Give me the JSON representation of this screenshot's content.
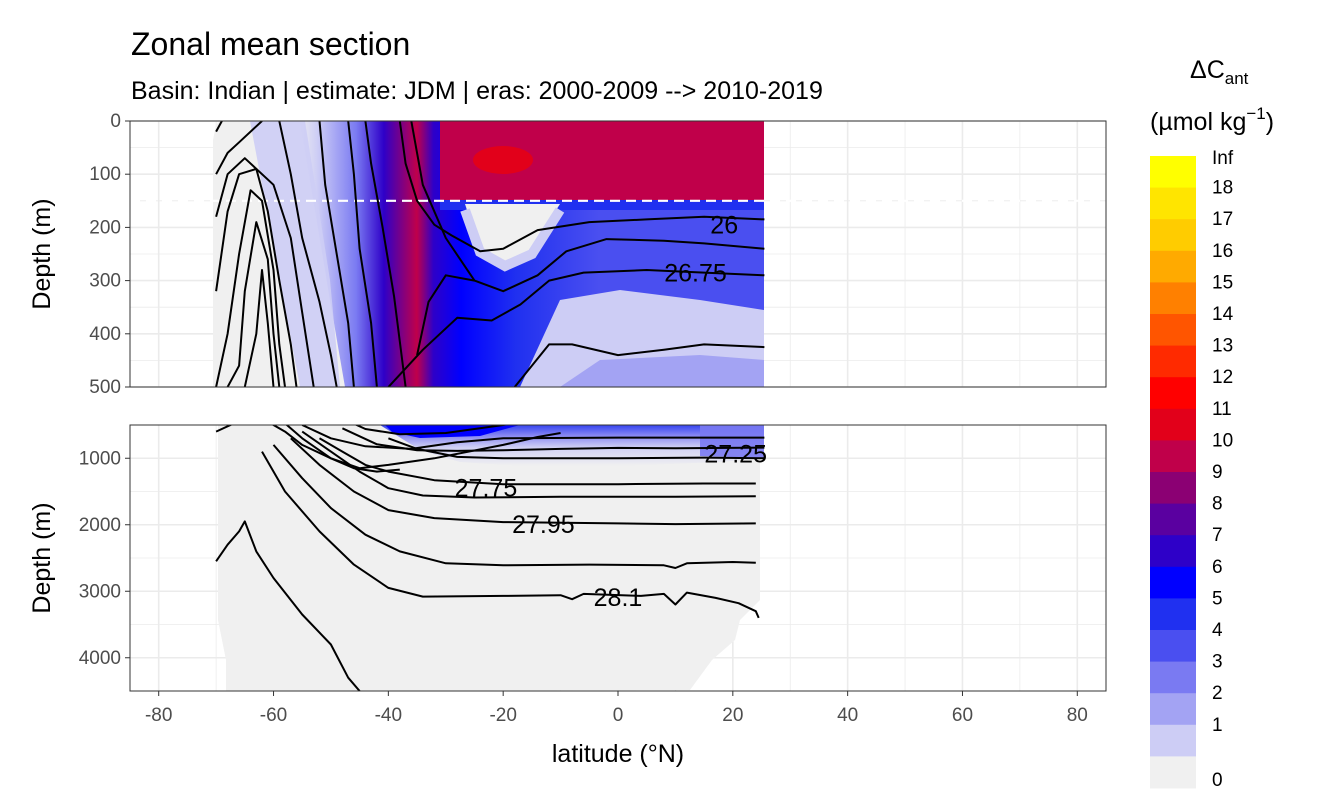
{
  "chart_data": {
    "type": "heatmap",
    "title": "Zonal mean section",
    "subtitle": "Basin: Indian | estimate: JDM  | eras: 2000-2009 --> 2010-2019",
    "xlabel": "latitude (°N)",
    "ylabel": "Depth (m)",
    "xlim": [
      -85,
      85
    ],
    "x_ticks": [
      -80,
      -60,
      -40,
      -20,
      0,
      20,
      40,
      60,
      80
    ],
    "panels": [
      {
        "name": "upper",
        "ylim": [
          500,
          0
        ],
        "y_ticks": [
          0,
          100,
          200,
          300,
          400,
          500
        ]
      },
      {
        "name": "lower",
        "ylim": [
          4500,
          500
        ],
        "y_ticks": [
          1000,
          2000,
          3000,
          4000
        ]
      }
    ],
    "reference_line_depth": 150,
    "legend": {
      "title_main": "ΔC",
      "title_sub": "ant",
      "unit_main": "(µmol kg",
      "unit_sup": "−1",
      "unit_end": ")",
      "bins": [
        {
          "label": "Inf",
          "color": "#ffff00"
        },
        {
          "label": "18",
          "color": "#ffe500"
        },
        {
          "label": "17",
          "color": "#ffcc00"
        },
        {
          "label": "16",
          "color": "#ffaa00"
        },
        {
          "label": "15",
          "color": "#ff8000"
        },
        {
          "label": "14",
          "color": "#ff5500"
        },
        {
          "label": "13",
          "color": "#ff2a00"
        },
        {
          "label": "12",
          "color": "#ff0000"
        },
        {
          "label": "11",
          "color": "#e2001a"
        },
        {
          "label": "10",
          "color": "#c0004a"
        },
        {
          "label": "9",
          "color": "#8b0073"
        },
        {
          "label": "8",
          "color": "#5a00a0"
        },
        {
          "label": "7",
          "color": "#2e00c8"
        },
        {
          "label": "6",
          "color": "#0000ff"
        },
        {
          "label": "5",
          "color": "#2030f0"
        },
        {
          "label": "4",
          "color": "#4a4ff0"
        },
        {
          "label": "3",
          "color": "#7a7af2"
        },
        {
          "label": "2",
          "color": "#a3a3f3"
        },
        {
          "label": "1",
          "color": "#cdcdf5"
        },
        {
          "label": "0",
          "color": "#f0f0f0"
        }
      ]
    },
    "contour_labels": [
      {
        "text": "26",
        "x": 18.5,
        "depth": 195
      },
      {
        "text": "26.75",
        "x": 13.5,
        "depth": 285
      },
      {
        "text": "27.25",
        "x": 20.5,
        "depth": 925
      },
      {
        "text": "27.75",
        "x": -23.0,
        "depth": 1440
      },
      {
        "text": "27.95",
        "x": -13.0,
        "depth": 1990
      },
      {
        "text": "28.1",
        "x": 0.0,
        "depth": 3090
      }
    ],
    "isopycnals_upper": [
      [
        [
          -70,
          20
        ],
        [
          -69,
          0
        ]
      ],
      [
        [
          -70,
          100
        ],
        [
          -68,
          60
        ],
        [
          -66,
          40
        ],
        [
          -62,
          0
        ]
      ],
      [
        [
          -70,
          180
        ],
        [
          -68,
          100
        ],
        [
          -65,
          70
        ],
        [
          -60,
          120
        ],
        [
          -57,
          220
        ],
        [
          -55,
          360
        ],
        [
          -53,
          500
        ]
      ],
      [
        [
          -70,
          320
        ],
        [
          -68,
          170
        ],
        [
          -66,
          100
        ],
        [
          -63,
          90
        ],
        [
          -61,
          170
        ],
        [
          -59,
          300
        ],
        [
          -57,
          420
        ],
        [
          -56,
          500
        ]
      ],
      [
        [
          -70,
          500
        ],
        [
          -68,
          400
        ],
        [
          -66,
          250
        ],
        [
          -64,
          130
        ],
        [
          -62,
          150
        ],
        [
          -60,
          280
        ],
        [
          -59,
          420
        ],
        [
          -58,
          500
        ]
      ],
      [
        [
          -68,
          500
        ],
        [
          -66,
          460
        ],
        [
          -65,
          320
        ],
        [
          -63,
          190
        ],
        [
          -61,
          260
        ],
        [
          -60,
          400
        ],
        [
          -59,
          500
        ]
      ],
      [
        [
          -65,
          500
        ],
        [
          -63,
          400
        ],
        [
          -62,
          280
        ],
        [
          -61,
          380
        ],
        [
          -60,
          500
        ]
      ],
      [
        [
          -59,
          0
        ],
        [
          -57,
          100
        ],
        [
          -55,
          220
        ],
        [
          -52,
          340
        ],
        [
          -50,
          440
        ],
        [
          -49,
          500
        ]
      ],
      [
        [
          -52,
          0
        ],
        [
          -51,
          120
        ],
        [
          -49,
          250
        ],
        [
          -47,
          380
        ],
        [
          -46,
          500
        ]
      ],
      [
        [
          -47,
          0
        ],
        [
          -46,
          100
        ],
        [
          -45,
          240
        ],
        [
          -43,
          380
        ],
        [
          -42,
          500
        ]
      ],
      [
        [
          -44,
          0
        ],
        [
          -43,
          80
        ],
        [
          -41,
          200
        ],
        [
          -39,
          330
        ],
        [
          -37,
          500
        ]
      ],
      [
        [
          -38,
          0
        ],
        [
          -37,
          80
        ],
        [
          -35,
          150
        ],
        [
          -32,
          195
        ],
        [
          -29,
          215
        ],
        [
          -24,
          245
        ],
        [
          -20,
          240
        ],
        [
          -14,
          205
        ],
        [
          -5,
          190
        ],
        [
          5,
          185
        ],
        [
          15,
          180
        ],
        [
          25.5,
          185
        ]
      ],
      [
        [
          -36,
          0
        ],
        [
          -34,
          120
        ],
        [
          -30,
          220
        ],
        [
          -25,
          300
        ],
        [
          -20,
          320
        ],
        [
          -14,
          290
        ],
        [
          -9,
          245
        ],
        [
          -2,
          222
        ],
        [
          8,
          225
        ],
        [
          15,
          230
        ],
        [
          25.5,
          240
        ]
      ],
      [
        [
          -35,
          440
        ],
        [
          -33,
          340
        ],
        [
          -30,
          290
        ],
        [
          -25,
          300
        ]
      ],
      [
        [
          -40,
          500
        ],
        [
          -34,
          430
        ],
        [
          -28,
          370
        ],
        [
          -22,
          375
        ],
        [
          -17,
          345
        ],
        [
          -12,
          300
        ],
        [
          -6,
          285
        ],
        [
          5,
          280
        ],
        [
          15,
          285
        ],
        [
          25.5,
          290
        ]
      ],
      [
        [
          -18,
          500
        ],
        [
          -12,
          420
        ],
        [
          -8,
          420
        ],
        [
          0,
          440
        ],
        [
          8,
          430
        ],
        [
          15,
          420
        ],
        [
          25.5,
          425
        ]
      ]
    ],
    "isopycnals_lower": [
      [
        [
          -70,
          600
        ],
        [
          -65,
          400
        ]
      ],
      [
        [
          -62,
          400
        ],
        [
          -58,
          600
        ],
        [
          -55,
          800
        ],
        [
          -50,
          1000
        ],
        [
          -46,
          1150
        ],
        [
          -42,
          1200
        ],
        [
          -38,
          1170
        ]
      ],
      [
        [
          -59,
          400
        ],
        [
          -55,
          700
        ],
        [
          -50,
          1000
        ],
        [
          -45,
          1150
        ],
        [
          -40,
          1100
        ],
        [
          -32,
          1000
        ],
        [
          -20,
          800
        ],
        [
          -14,
          680
        ],
        [
          -10,
          620
        ]
      ],
      [
        [
          -48,
          400
        ],
        [
          -44,
          560
        ],
        [
          -38,
          640
        ],
        [
          -30,
          620
        ],
        [
          -20,
          500
        ],
        [
          -15,
          420
        ]
      ],
      [
        [
          -55,
          500
        ],
        [
          -50,
          700
        ],
        [
          -44,
          820
        ],
        [
          -36,
          860
        ],
        [
          -28,
          760
        ],
        [
          -20,
          700
        ],
        [
          0,
          690
        ],
        [
          10,
          690
        ],
        [
          25.5,
          690
        ]
      ],
      [
        [
          -48,
          550
        ],
        [
          -42,
          790
        ],
        [
          -35,
          880
        ],
        [
          -28,
          890
        ],
        [
          -20,
          880
        ],
        [
          -10,
          860
        ],
        [
          0,
          845
        ],
        [
          10,
          850
        ],
        [
          25.5,
          840
        ]
      ],
      [
        [
          -40,
          700
        ],
        [
          -35,
          860
        ],
        [
          -28,
          980
        ],
        [
          -20,
          1000
        ],
        [
          -10,
          1000
        ],
        [
          0,
          1000
        ],
        [
          15,
          990
        ],
        [
          25.5,
          1000
        ]
      ],
      [
        [
          -52,
          700
        ],
        [
          -48,
          900
        ],
        [
          -44,
          1100
        ],
        [
          -40,
          1200
        ],
        [
          -32,
          1330
        ],
        [
          -20,
          1390
        ],
        [
          0,
          1390
        ],
        [
          15,
          1380
        ],
        [
          24,
          1380
        ]
      ],
      [
        [
          -55,
          600
        ],
        [
          -50,
          900
        ],
        [
          -45,
          1200
        ],
        [
          -40,
          1450
        ],
        [
          -34,
          1560
        ],
        [
          -25,
          1590
        ],
        [
          -10,
          1580
        ],
        [
          10,
          1580
        ],
        [
          24,
          1570
        ]
      ],
      [
        [
          -57,
          700
        ],
        [
          -52,
          1100
        ],
        [
          -46,
          1500
        ],
        [
          -40,
          1780
        ],
        [
          -32,
          1900
        ],
        [
          -20,
          1960
        ],
        [
          0,
          1980
        ],
        [
          10,
          1990
        ],
        [
          24,
          1980
        ]
      ],
      [
        [
          -60,
          800
        ],
        [
          -55,
          1300
        ],
        [
          -50,
          1750
        ],
        [
          -44,
          2150
        ],
        [
          -38,
          2400
        ],
        [
          -30,
          2580
        ],
        [
          -20,
          2610
        ],
        [
          -5,
          2600
        ],
        [
          8,
          2610
        ],
        [
          10,
          2650
        ],
        [
          12,
          2580
        ],
        [
          20,
          2560
        ],
        [
          24,
          2570
        ]
      ],
      [
        [
          -62,
          900
        ],
        [
          -58,
          1500
        ],
        [
          -52,
          2100
        ],
        [
          -46,
          2600
        ],
        [
          -40,
          2950
        ],
        [
          -34,
          3080
        ],
        [
          -20,
          3070
        ],
        [
          -10,
          3060
        ],
        [
          -8,
          3120
        ],
        [
          -6,
          3040
        ],
        [
          4,
          3070
        ],
        [
          8,
          3040
        ],
        [
          10,
          3200
        ],
        [
          12,
          3020
        ],
        [
          17,
          3100
        ],
        [
          21,
          3180
        ],
        [
          24,
          3300
        ],
        [
          24.5,
          3400
        ]
      ],
      [
        [
          -70,
          2550
        ],
        [
          -68,
          2300
        ],
        [
          -66,
          2100
        ],
        [
          -65,
          1950
        ],
        [
          -63,
          2400
        ],
        [
          -60,
          2800
        ],
        [
          -55,
          3350
        ],
        [
          -50,
          3800
        ],
        [
          -47,
          4300
        ],
        [
          -45,
          4500
        ]
      ]
    ]
  }
}
